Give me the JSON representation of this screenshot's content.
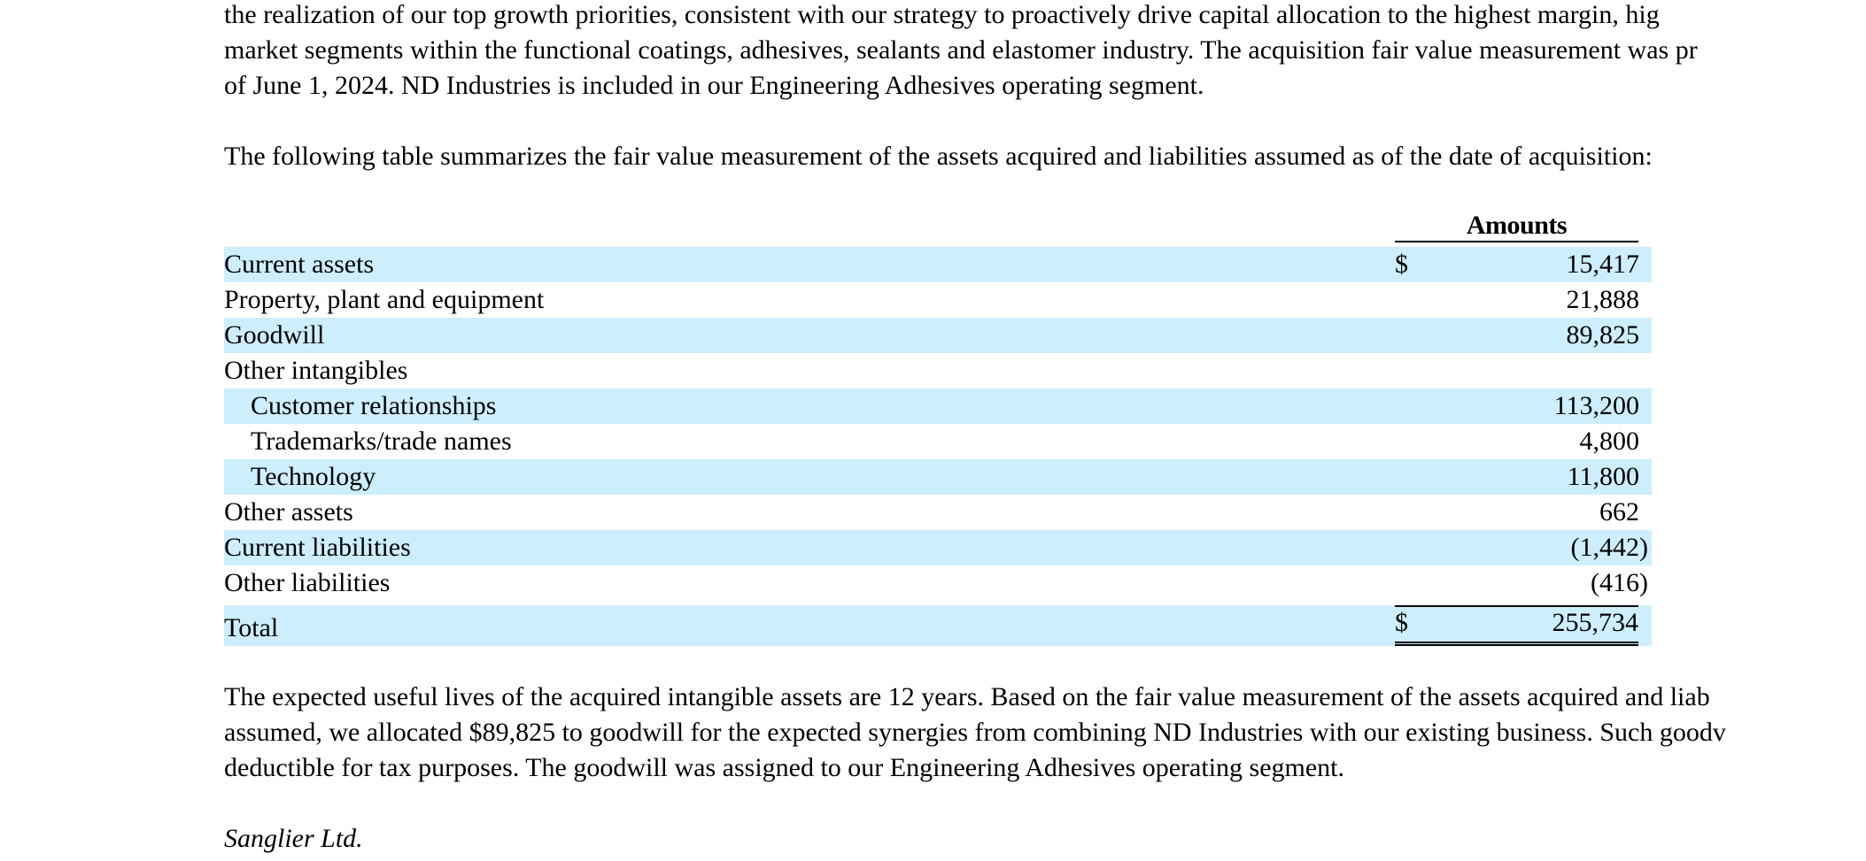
{
  "intro_paragraph": [
    "the realization of our top growth priorities, consistent with our strategy to proactively drive capital allocation to the highest margin, hig",
    "market segments within the functional coatings, adhesives, sealants and elastomer industry. The acquisition fair value measurement was pr",
    "of June 1, 2024. ND Industries is included in our Engineering Adhesives operating segment."
  ],
  "table_intro": "The following table summarizes the fair value measurement of the assets acquired and liabilities assumed as of the date of acquisition:",
  "table": {
    "column_header": "Amounts",
    "currency_symbol": "$",
    "rows": [
      {
        "label": "Current assets",
        "value": "15,417",
        "show_currency": true
      },
      {
        "label": "Property, plant and equipment",
        "value": "21,888"
      },
      {
        "label": "Goodwill",
        "value": "89,825"
      },
      {
        "label": "Other intangibles",
        "value": ""
      },
      {
        "label": "Customer relationships",
        "value": "113,200",
        "indent": true
      },
      {
        "label": "Trademarks/trade names",
        "value": "4,800",
        "indent": true
      },
      {
        "label": "Technology",
        "value": "11,800",
        "indent": true
      },
      {
        "label": "Other assets",
        "value": "662"
      },
      {
        "label": "Current liabilities",
        "value": "(1,442)"
      },
      {
        "label": "Other liabilities",
        "value": "(416)"
      }
    ],
    "total": {
      "label": "Total",
      "value": "255,734"
    }
  },
  "closing_paragraph": [
    "The expected useful lives of the acquired intangible assets are 12 years. Based on the fair value measurement of the assets acquired and liab",
    "assumed, we allocated $89,825 to goodwill for the expected synergies from combining ND Industries with our existing business. Such goodv",
    "deductible for tax purposes. The goodwill was assigned to our Engineering Adhesives operating segment."
  ],
  "next_heading": "Sanglier Ltd.",
  "colors": {
    "row_shading": "#cdeefc",
    "text": "#000000"
  }
}
